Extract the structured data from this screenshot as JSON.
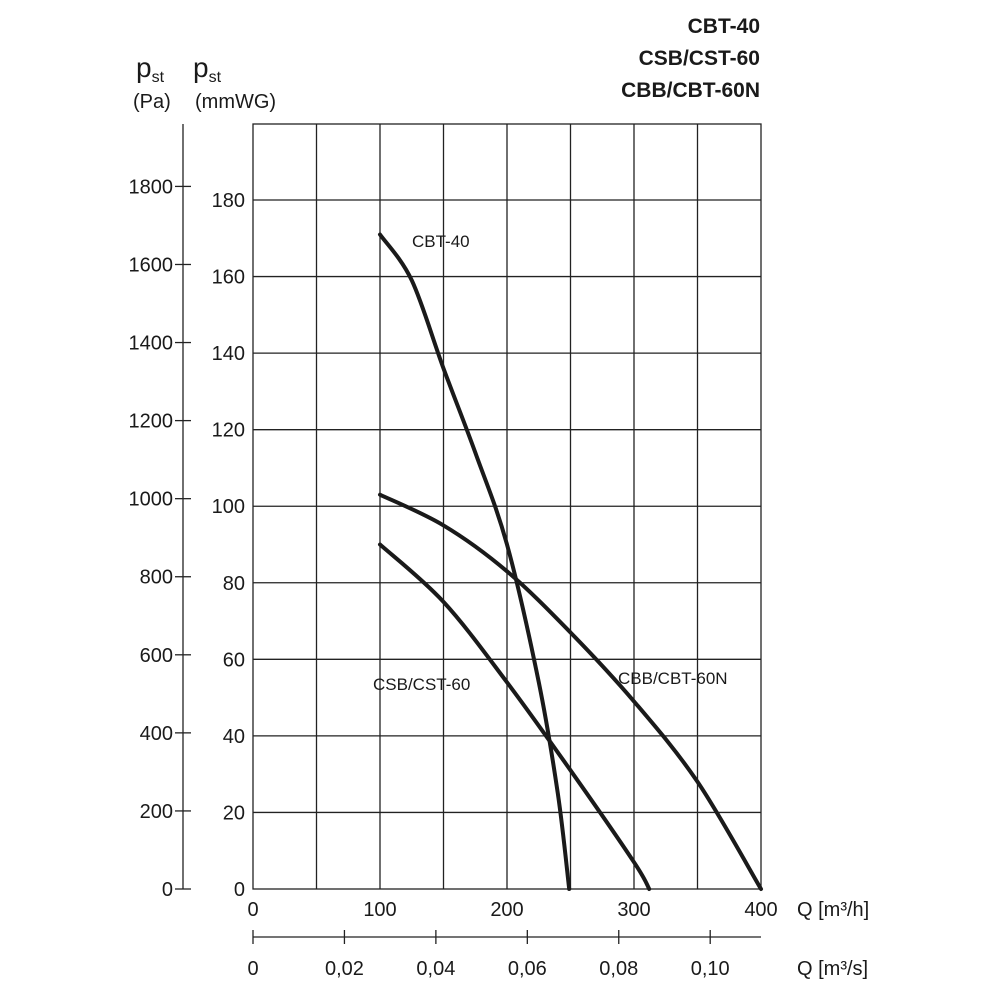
{
  "titles": [
    "CBT-40",
    "CSB/CST-60",
    "CBB/CBT-60N"
  ],
  "axis_labels": {
    "pa_symbol": "p",
    "pa_sub": "st",
    "pa_unit": "(Pa)",
    "mm_symbol": "p",
    "mm_sub": "st",
    "mm_unit": "(mmWG)",
    "q_h_label": "Q [m³/h]",
    "q_s_label": "Q [m³/s]"
  },
  "chart_data": {
    "type": "line",
    "title": [
      "CBT-40",
      "CSB/CST-60",
      "CBB/CBT-60N"
    ],
    "xlabel": "Q [m³/h]",
    "ylabel": "pst (mmWG)",
    "xlim": [
      0,
      400
    ],
    "ylim": [
      0,
      180
    ],
    "grid": true,
    "x_ticks": [
      0,
      100,
      200,
      300,
      400
    ],
    "x_tick_labels": [
      "0",
      "100",
      "200",
      "300",
      "400"
    ],
    "y_ticks": [
      0,
      20,
      40,
      60,
      80,
      100,
      120,
      140,
      160,
      180
    ],
    "y_tick_labels": [
      "0",
      "20",
      "40",
      "60",
      "80",
      "100",
      "120",
      "140",
      "160",
      "180"
    ],
    "secondary_y": {
      "label": "pst (Pa)",
      "ticks": [
        0,
        200,
        400,
        600,
        800,
        1000,
        1200,
        1400,
        1600,
        1800
      ],
      "tick_labels": [
        "0",
        "200",
        "400",
        "600",
        "800",
        "1000",
        "1200",
        "1400",
        "1600",
        "1800"
      ],
      "mmwg_per_pa": 0.1019716
    },
    "secondary_x": {
      "label": "Q [m³/s]",
      "ticks": [
        0,
        0.02,
        0.04,
        0.06,
        0.08,
        0.1
      ],
      "tick_labels": [
        "0",
        "0,02",
        "0,04",
        "0,06",
        "0,08",
        "0,10"
      ],
      "m3h_per_m3s": 3600
    },
    "series": [
      {
        "name": "CBT-40",
        "x": [
          100,
          125,
          150,
          175,
          200,
          225,
          240,
          249
        ],
        "y": [
          171,
          159,
          136,
          114,
          90,
          54,
          25,
          0
        ]
      },
      {
        "name": "CSB/CST-60",
        "x": [
          100,
          150,
          200,
          250,
          300,
          312
        ],
        "y": [
          90,
          75,
          54,
          31,
          7,
          0
        ]
      },
      {
        "name": "CBB/CBT-60N",
        "x": [
          100,
          150,
          200,
          250,
          300,
          350,
          400
        ],
        "y": [
          103,
          95,
          83,
          67,
          49,
          28,
          0
        ]
      }
    ]
  }
}
